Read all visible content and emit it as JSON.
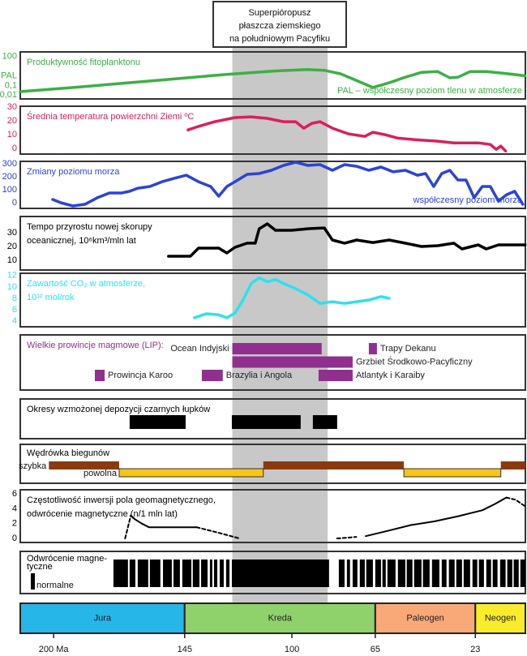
{
  "superplume": {
    "text": [
      "Superpióropusz",
      "płaszcza ziemskiego",
      "na południowym Pacyfiku"
    ],
    "start": 125,
    "end": 85,
    "color": "#c8c8c8"
  },
  "chart_data": [
    {
      "type": "line",
      "title": [
        "Produktywność fitoplanktonu"
      ],
      "note": "PAL – współczesny poziom tlenu w atmosferze",
      "color": "#3cb043",
      "log": true,
      "xlim": [
        214,
        2
      ],
      "ylim": [
        0.004,
        300
      ],
      "yticks": [
        {
          "value": 100,
          "label": "100"
        },
        {
          "value": 1,
          "label": "PAL"
        },
        {
          "value": 0.1,
          "label": "0,1"
        },
        {
          "value": 0.01,
          "label": "0,01"
        }
      ],
      "x": [
        214,
        188.5,
        154.5,
        127.3,
        106.9,
        93.3,
        86.4,
        79.6,
        72.8,
        66.0,
        59.2,
        52.4,
        45.6,
        38.8,
        33.7,
        30.3,
        25.2,
        18.4,
        11.6,
        4.8,
        2.1
      ],
      "values": [
        0.023,
        0.072,
        0.37,
        1.4,
        3.2,
        4.4,
        3.7,
        1.6,
        0.32,
        0.061,
        0.19,
        0.72,
        2.3,
        2.7,
        0.61,
        0.72,
        2.7,
        2.7,
        1.9,
        1.2,
        1.0
      ]
    },
    {
      "type": "line",
      "title": [
        "Średnia temperatura powierzchni Ziemi ºC"
      ],
      "color": "#dc1e5a",
      "xlim": [
        214,
        2
      ],
      "ylim": [
        -4,
        30.6
      ],
      "yticks": [
        30,
        20,
        10,
        0
      ],
      "x": [
        143.6,
        139.2,
        132.4,
        123.9,
        117.1,
        110.3,
        103.5,
        98.4,
        95,
        91.6,
        88.2,
        83.0,
        76.2,
        69.4,
        66.0,
        60.9,
        55.8,
        49.0,
        38.8,
        32.0,
        21.8,
        16.7,
        14.3,
        12.3,
        10.3
      ],
      "values": [
        13.5,
        16,
        19.4,
        22.4,
        22.9,
        21.8,
        19.4,
        19.4,
        14.7,
        18.2,
        19.4,
        14.7,
        10.6,
        8.8,
        11.8,
        10,
        7.6,
        6.5,
        5.3,
        4.1,
        4.1,
        2.9,
        -0.6,
        1.8,
        -1.8
      ]
    },
    {
      "type": "line",
      "title": [
        "Zmiany poziomu morza"
      ],
      "note": "współczesny poziom morza",
      "color": "#2b44d8",
      "xlim": [
        214,
        2
      ],
      "ylim": [
        -44,
        319
      ],
      "yticks": [
        300,
        200,
        100,
        0
      ],
      "x": [
        200.4,
        197,
        191.9,
        186.8,
        181.7,
        176.6,
        171.5,
        168.1,
        164.7,
        159.6,
        154.5,
        149.4,
        144.3,
        139.2,
        134.1,
        130.7,
        127.3,
        123.9,
        118.8,
        113.7,
        108.6,
        103.5,
        98.4,
        93.3,
        88.2,
        83.0,
        77.9,
        72.8,
        67.7,
        62.6,
        57.5,
        52.4,
        47.3,
        43.9,
        40.5,
        37.1,
        33.7,
        30.3,
        26.9,
        23.5,
        20.1,
        16.7,
        13.3,
        9.9,
        6.5,
        3.1
      ],
      "values": [
        25,
        0,
        -25,
        -12,
        38,
        75,
        75,
        88,
        112,
        125,
        162,
        188,
        212,
        162,
        125,
        50,
        125,
        162,
        219,
        225,
        250,
        288,
        312,
        288,
        294,
        250,
        294,
        281,
        250,
        275,
        238,
        250,
        212,
        225,
        125,
        225,
        250,
        175,
        175,
        38,
        125,
        125,
        12,
        62,
        88,
        -12
      ]
    },
    {
      "type": "line",
      "title": [
        "Tempo  przyrostu  nowej  skorupy",
        "oceanicznej, 10⁶km³/mln lat"
      ],
      "color": "#000000",
      "xlim": [
        214,
        2
      ],
      "ylim": [
        2.9,
        41.8
      ],
      "yticks": [
        30,
        20,
        10
      ],
      "x": [
        151.8,
        142.6,
        139.2,
        130.7,
        127.3,
        123.9,
        118.8,
        115.4,
        113.7,
        110.3,
        106.9,
        100.1,
        93.3,
        86.4,
        83.0,
        77.9,
        72.8,
        66.0,
        59.2,
        52.4,
        45.6,
        38.8,
        32.0,
        28.6,
        21.8,
        18.4,
        13.3,
        2.1
      ],
      "values": [
        12.9,
        12.9,
        18.8,
        18.8,
        15.3,
        19.4,
        22.4,
        22.4,
        32.9,
        36.5,
        31.8,
        31.8,
        32.9,
        33.5,
        24.7,
        22.4,
        24.7,
        22.9,
        24.7,
        22.4,
        20,
        20.6,
        22.4,
        18.2,
        21.2,
        18.2,
        21.2,
        21.2
      ]
    },
    {
      "type": "line",
      "title": [
        "Zawartość CO₂ w atmosferze,",
        "10¹² mol/rok"
      ],
      "color": "#2de1ee",
      "xlim": [
        214,
        2
      ],
      "ylim": [
        3,
        12.4
      ],
      "yticks": [
        12,
        10,
        8,
        6,
        4
      ],
      "x": [
        140.9,
        135.8,
        130.7,
        127.3,
        123.9,
        120.5,
        117.1,
        113.7,
        110.3,
        106.9,
        103.5,
        98.4,
        93.3,
        88.2,
        83.0,
        77.9,
        72.8,
        67.7,
        62.6,
        59.2
      ],
      "values": [
        4.6,
        5.3,
        5.1,
        4.6,
        5.4,
        7.7,
        10.6,
        11.6,
        10.9,
        11.3,
        10.6,
        9.7,
        8.6,
        7.1,
        7.4,
        7.1,
        7.4,
        7.7,
        8.3,
        8.0
      ]
    },
    {
      "type": "intervals",
      "title": [
        "Wielkie prowincje magmowe (LIP):"
      ],
      "color": "#912f8f",
      "xlim": [
        214,
        2
      ],
      "rows": [
        [
          {
            "label": "Ocean Indyjski",
            "start": 125,
            "end": 87.5
          },
          {
            "label": "Trapy Dekanu",
            "start": 67.7,
            "end": 64.3
          }
        ],
        [
          {
            "label": "Grzbiet Środkowo-Pacyficzny",
            "start": 125,
            "end": 74.5
          }
        ],
        [
          {
            "label": "Prowincja Karoo",
            "start": 182.7,
            "end": 178.6
          },
          {
            "label": "Brazylia i Angola",
            "start": 137.8,
            "end": 129
          },
          {
            "label": "Atlantyk i Karaiby",
            "start": 88.8,
            "end": 74.5
          }
        ]
      ]
    },
    {
      "type": "intervals",
      "title": [
        "Okresy wzmożonej depozycji czarnych łupków"
      ],
      "color": "#000000",
      "xlim": [
        214,
        2
      ],
      "rows": [
        [
          {
            "start": 168.1,
            "end": 144.6
          },
          {
            "start": 125.2,
            "end": 96.3
          },
          {
            "start": 91.2,
            "end": 81.0
          }
        ]
      ]
    },
    {
      "type": "lanes",
      "title": [
        "Wędrówka biegunów"
      ],
      "color": "#000000",
      "xlim": [
        214,
        2
      ],
      "series": [
        {
          "name": "szybka",
          "color": "#8b3a0f",
          "intervals": [
            [
              202,
              172.5
            ],
            [
              112,
              53
            ],
            [
              12.3,
              2
            ]
          ]
        },
        {
          "name": "powolna",
          "color": "#f5c518",
          "intervals": [
            [
              172.5,
              112
            ],
            [
              53,
              12.3
            ]
          ]
        }
      ]
    },
    {
      "type": "line",
      "title": [
        "Częstotliwość inwersji pola geomagnetycznego,",
        "odwrócenie magnetyczne (n/1 mln lat)"
      ],
      "color": "#000000",
      "xlim": [
        214,
        2
      ],
      "ylim": [
        -0.55,
        6.55
      ],
      "yticks": [
        6,
        4,
        2,
        0
      ],
      "series": [
        {
          "x": [
            167.6,
            166,
            163,
            160,
            150,
            140,
            null,
            69,
            60,
            50,
            40,
            30,
            20,
            15,
            10
          ],
          "values": [
            3.1,
            2.6,
            2.0,
            1.5,
            1.5,
            1.5,
            null,
            0.3,
            1.0,
            1.8,
            2.3,
            3.0,
            3.8,
            4.6,
            5.5
          ]
        },
        {
          "dashed": true,
          "x": [
            170,
            167.6,
            null,
            140,
            130,
            122,
            null,
            81,
            76,
            73,
            null,
            10,
            6,
            2
          ],
          "values": [
            0,
            3.1,
            null,
            1.5,
            0.7,
            0,
            null,
            0,
            0.1,
            0.2,
            null,
            5.5,
            5.2,
            4.3
          ]
        }
      ]
    },
    {
      "type": "polarity",
      "title": [
        "Odwrócenie magne-",
        "tyczne"
      ],
      "legend": "normalne",
      "color": "#000000",
      "xlim": [
        214,
        2
      ],
      "intervals": [
        [
          174.9,
          168.8
        ],
        [
          168.1,
          165.7
        ],
        [
          164.7,
          160.3
        ],
        [
          159.6,
          155.2
        ],
        [
          154.1,
          150.4
        ],
        [
          149.7,
          147.0
        ],
        [
          146.0,
          142.2
        ],
        [
          141.6,
          138.8
        ],
        [
          138.1,
          135.4
        ],
        [
          134.4,
          133.4
        ],
        [
          132.7,
          131.3
        ],
        [
          130.3,
          128.6
        ],
        [
          127.6,
          126.2
        ],
        [
          125.2,
          84.4
        ],
        [
          80.3,
          77.9
        ],
        [
          76.9,
          75.6
        ],
        [
          74.5,
          72.5
        ],
        [
          71.5,
          69.4
        ],
        [
          68.8,
          66.0
        ],
        [
          65.0,
          62.6
        ],
        [
          62.0,
          60.6
        ],
        [
          59.9,
          56.5
        ],
        [
          55.5,
          52.4
        ],
        [
          51.8,
          49.4
        ],
        [
          48.7,
          45.6
        ],
        [
          45.0,
          42.2
        ],
        [
          41.2,
          38.1
        ],
        [
          37.1,
          35.1
        ],
        [
          34.1,
          31.7
        ],
        [
          31.0,
          28.6
        ],
        [
          27.9,
          25.2
        ],
        [
          24.2,
          22.2
        ],
        [
          21.5,
          19.4
        ],
        [
          18.4,
          16.4
        ],
        [
          15.7,
          13.7
        ],
        [
          12.6,
          10.3
        ],
        [
          9.6,
          7.5
        ],
        [
          6.9,
          4.8
        ],
        [
          4.1,
          2
        ]
      ]
    },
    {
      "type": "timescale",
      "categories": [
        "Jura",
        "Kreda",
        "Paleogen",
        "Neogen"
      ],
      "colors": [
        "#27b6e8",
        "#8fd16a",
        "#f9a877",
        "#f9ec2a"
      ],
      "boundaries": [
        145,
        65,
        23
      ],
      "xlim": [
        214,
        2
      ],
      "xticks": [
        {
          "value": 200,
          "label": "200 Ma"
        },
        145,
        100,
        65,
        23
      ]
    }
  ]
}
